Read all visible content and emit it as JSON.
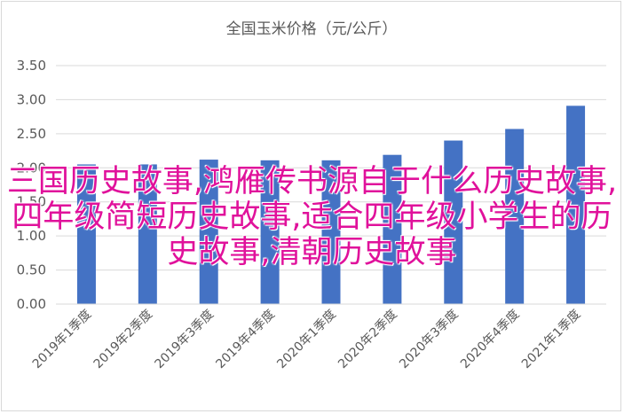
{
  "chart_data": {
    "type": "bar",
    "title": "全国玉米价格（元/公斤）",
    "categories": [
      "2019年1季度",
      "2019年2季度",
      "2019年3季度",
      "2019年4季度",
      "2020年1季度",
      "2020年2季度",
      "2020年3季度",
      "2020年4季度",
      "2021年1季度"
    ],
    "values": [
      2.05,
      2.05,
      2.12,
      2.11,
      2.11,
      2.19,
      2.4,
      2.57,
      2.91
    ],
    "ylim": [
      0,
      3.5
    ],
    "yticks": [
      "0.00",
      "0.50",
      "1.00",
      "1.50",
      "2.00",
      "2.50",
      "3.00",
      "3.50"
    ],
    "grid": true,
    "bar_color": "#4472c4"
  },
  "overlay_text": "三国历史故事,鸿雁传书源自于什么历史故事,四年级简短历史故事,适合四年级小学生的历史故事,清朝历史故事"
}
